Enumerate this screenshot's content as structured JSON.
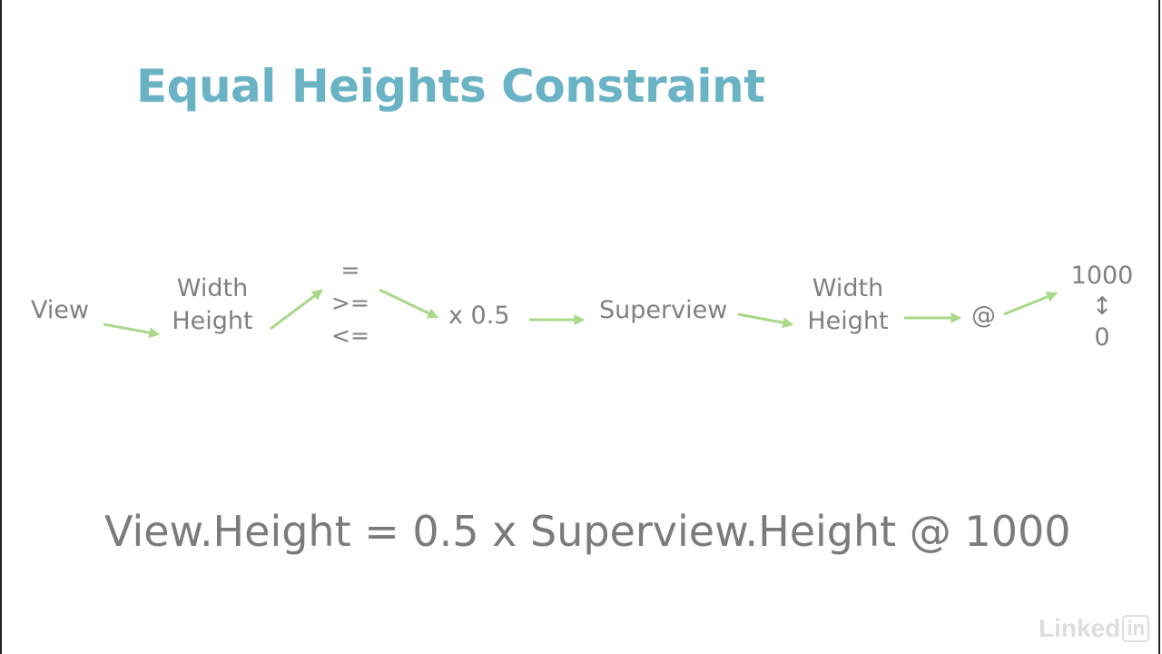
{
  "title": "Equal Heights Constraint",
  "diagram": {
    "view": "View",
    "attribute_width": "Width",
    "attribute_height": "Height",
    "relation_equal": "=",
    "relation_gte": ">=",
    "relation_lte": "<=",
    "multiplier": "x 0.5",
    "superview": "Superview",
    "superview_width": "Width",
    "superview_height": "Height",
    "priority_at": "@",
    "priority_max": "1000",
    "priority_range_arrow": "↕",
    "priority_min": "0"
  },
  "formula": "View.Height = 0.5 x Superview.Height @ 1000",
  "logo": {
    "text_main": "Linked",
    "text_box": "in"
  },
  "colors": {
    "title": "#6ab3c4",
    "text": "#808080",
    "arrow": "#a9d88a"
  }
}
